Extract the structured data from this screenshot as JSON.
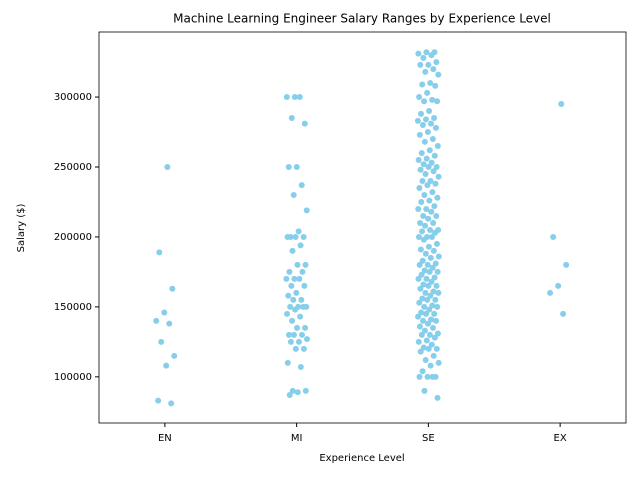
{
  "chart_data": {
    "type": "strip",
    "title": "Machine Learning Engineer Salary Ranges by Experience Level",
    "x_label": "Experience Level",
    "y_label": "Salary ($)",
    "color": "#87ceeb",
    "categories": [
      "EN",
      "MI",
      "SE",
      "EX"
    ],
    "values": [
      [
        250000,
        189000,
        163000,
        146000,
        140000,
        138000,
        125000,
        115000,
        108000,
        83000,
        81000
      ],
      [
        300000,
        300000,
        300000,
        285000,
        281000,
        250000,
        250000,
        237000,
        230000,
        219000,
        204000,
        200000,
        200000,
        200000,
        200000,
        194000,
        190000,
        180000,
        180000,
        175000,
        175000,
        170000,
        170000,
        170000,
        165000,
        165000,
        160000,
        158000,
        155000,
        155000,
        150000,
        150000,
        150000,
        150000,
        148000,
        145000,
        143000,
        140000,
        135000,
        135000,
        130000,
        130000,
        130000,
        127000,
        125000,
        125000,
        120000,
        120000,
        110000,
        107000,
        90000,
        90000,
        89000,
        87000
      ],
      [
        332000,
        332000,
        331000,
        330000,
        328000,
        325000,
        323000,
        323000,
        320000,
        318000,
        316000,
        310000,
        309000,
        308000,
        303000,
        300000,
        298000,
        297000,
        297000,
        290000,
        288000,
        285000,
        284000,
        283000,
        281000,
        280000,
        278000,
        275000,
        273000,
        270000,
        268000,
        265000,
        262000,
        260000,
        258000,
        256000,
        255000,
        253000,
        252000,
        250000,
        250000,
        248000,
        247000,
        245000,
        243000,
        240000,
        240000,
        238000,
        237000,
        235000,
        232000,
        230000,
        228000,
        226000,
        225000,
        222000,
        220000,
        220000,
        218000,
        215000,
        215000,
        213000,
        210000,
        210000,
        208000,
        205000,
        205000,
        204000,
        203000,
        200000,
        200000,
        200000,
        198000,
        195000,
        193000,
        191000,
        190000,
        188000,
        186000,
        185000,
        183000,
        181000,
        180000,
        180000,
        178000,
        176000,
        175000,
        175000,
        173000,
        171000,
        170000,
        170000,
        168000,
        166000,
        165000,
        165000,
        163000,
        161000,
        160000,
        160000,
        158000,
        156000,
        155000,
        155000,
        153000,
        151000,
        150000,
        150000,
        148000,
        146000,
        145000,
        145000,
        143000,
        141000,
        140000,
        140000,
        138000,
        136000,
        135000,
        133000,
        131000,
        130000,
        130000,
        128000,
        126000,
        125000,
        123000,
        121000,
        120000,
        120000,
        118000,
        115000,
        112000,
        110000,
        108000,
        104000,
        100000,
        100000,
        100000,
        100000,
        90000,
        85000
      ],
      [
        295000,
        200000,
        180000,
        165000,
        160000,
        145000
      ]
    ],
    "ylim": [
      67000,
      346500
    ],
    "yticks": [
      100000,
      150000,
      200000,
      250000,
      300000
    ]
  }
}
